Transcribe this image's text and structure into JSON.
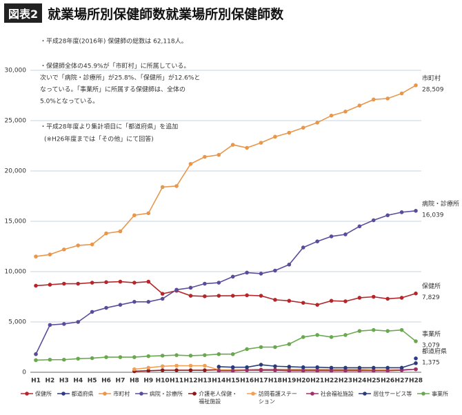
{
  "chart_data": {
    "type": "line",
    "figure_label": "図表2",
    "title": "就業場所別保健師数就業場所別保健師数",
    "notes": [
      "・平成28年度(2016年) 保健師の総数は 62,118人。",
      "・保健師全体の45.9%が「市町村」に所属している。",
      "次いで「病院・診療所」が25.8%、「保健所」が12.6%と",
      "なっている。「事業所」に所属する保健師は、全体の",
      "5.0%となっている。",
      "・平成28年度より集計項目に「都道府県」を追加",
      "(※H26年度までは「その他」にて回答)"
    ],
    "categories": [
      "H1",
      "H2",
      "H3",
      "H4",
      "H5",
      "H6",
      "H7",
      "H8",
      "H9",
      "H10",
      "H11",
      "H12",
      "H13",
      "H14",
      "H15",
      "H16",
      "H17",
      "H18",
      "H19",
      "H20",
      "H21",
      "H22",
      "H23",
      "H24",
      "H25",
      "H26",
      "H27",
      "H28"
    ],
    "ylim": [
      0,
      30000
    ],
    "yticks": [
      0,
      {
        "value": 5000,
        "label": "5,000"
      },
      {
        "value": 10000,
        "label": "10,000"
      },
      {
        "value": 15000,
        "label": "15,000"
      },
      {
        "value": 20000,
        "label": "20,000"
      },
      {
        "value": 25000,
        "label": "25,000"
      },
      {
        "value": 30000,
        "label": "30,000"
      }
    ],
    "grid": true,
    "series": [
      {
        "name": "保健所",
        "color": "#b5262b",
        "values": [
          8600,
          8700,
          8800,
          8800,
          8900,
          8950,
          9000,
          8900,
          9000,
          7800,
          8100,
          7600,
          7550,
          7600,
          7600,
          7650,
          7600,
          7200,
          7100,
          6900,
          6700,
          7100,
          7050,
          7400,
          7500,
          7300,
          7400,
          7829
        ],
        "value_labels": [
          null,
          null,
          null,
          null,
          null,
          null,
          null,
          null,
          null,
          null,
          null,
          null,
          null,
          null,
          null,
          null,
          null,
          null,
          null,
          null,
          null,
          null,
          null,
          null,
          null,
          null,
          null,
          "7,829"
        ]
      },
      {
        "name": "都道府県",
        "color": "#2b3a8a",
        "values": [
          null,
          null,
          null,
          null,
          null,
          null,
          null,
          null,
          null,
          null,
          null,
          null,
          null,
          null,
          null,
          null,
          null,
          null,
          null,
          null,
          null,
          null,
          null,
          null,
          null,
          null,
          null,
          1375
        ],
        "value_labels": [
          null,
          null,
          null,
          null,
          null,
          null,
          null,
          null,
          null,
          null,
          null,
          null,
          null,
          null,
          null,
          null,
          null,
          null,
          null,
          null,
          null,
          null,
          null,
          null,
          null,
          null,
          null,
          "1,375"
        ]
      },
      {
        "name": "市町村",
        "color": "#e8964a",
        "values": [
          11500,
          11700,
          12200,
          12600,
          12700,
          13800,
          14000,
          15600,
          15800,
          18400,
          18500,
          20700,
          21400,
          21600,
          22600,
          22300,
          22800,
          23400,
          23800,
          24300,
          24800,
          25500,
          25900,
          26500,
          27100,
          27200,
          27700,
          28509
        ],
        "value_labels": [
          null,
          null,
          null,
          null,
          null,
          null,
          null,
          null,
          null,
          null,
          null,
          null,
          null,
          null,
          null,
          null,
          null,
          null,
          null,
          null,
          null,
          null,
          null,
          null,
          null,
          null,
          null,
          "28,509"
        ]
      },
      {
        "name": "病院・診療所",
        "color": "#5a4b9b",
        "values": [
          1800,
          4700,
          4800,
          5000,
          6000,
          6400,
          6700,
          7000,
          7000,
          7300,
          8200,
          8400,
          8800,
          8900,
          9500,
          9900,
          9800,
          10100,
          10700,
          12400,
          13000,
          13500,
          13700,
          14500,
          15100,
          15600,
          15900,
          16039
        ],
        "value_labels": [
          null,
          null,
          null,
          null,
          null,
          null,
          null,
          null,
          null,
          null,
          null,
          null,
          null,
          null,
          null,
          null,
          null,
          null,
          null,
          null,
          null,
          null,
          null,
          null,
          null,
          null,
          null,
          "16,039"
        ]
      },
      {
        "name": "介護老人保健・福祉施設",
        "color": "#8b1a1a",
        "values": [
          null,
          null,
          null,
          null,
          null,
          null,
          null,
          100,
          150,
          200,
          200,
          200,
          200,
          250,
          250,
          250,
          250,
          250,
          250,
          250,
          250,
          250,
          250,
          250,
          250,
          250,
          250,
          300
        ]
      },
      {
        "name": "訪問看護ステーション",
        "color": "#f0a050",
        "values": [
          null,
          null,
          null,
          null,
          null,
          null,
          null,
          300,
          450,
          600,
          650,
          650,
          650,
          250,
          250,
          250,
          200,
          200,
          200,
          200,
          200,
          200,
          200,
          200,
          250,
          250,
          250,
          300
        ]
      },
      {
        "name": "社会福祉施設",
        "color": "#a0306a",
        "values": [
          null,
          null,
          null,
          null,
          null,
          null,
          null,
          null,
          null,
          null,
          null,
          null,
          null,
          150,
          150,
          200,
          200,
          200,
          150,
          150,
          150,
          150,
          150,
          150,
          150,
          150,
          200,
          300
        ]
      },
      {
        "name": "居住サービス等",
        "color": "#2a3b7a",
        "values": [
          null,
          null,
          null,
          null,
          null,
          null,
          null,
          null,
          null,
          null,
          null,
          null,
          null,
          550,
          500,
          500,
          750,
          600,
          550,
          500,
          500,
          450,
          450,
          450,
          450,
          450,
          450,
          900
        ]
      },
      {
        "name": "事業所",
        "color": "#6aa84f",
        "values": [
          1200,
          1250,
          1250,
          1350,
          1400,
          1500,
          1500,
          1500,
          1600,
          1650,
          1700,
          1650,
          1700,
          1800,
          1800,
          2300,
          2500,
          2500,
          2800,
          3500,
          3700,
          3500,
          3700,
          4100,
          4200,
          4100,
          4200,
          3079
        ],
        "value_labels": [
          null,
          null,
          null,
          null,
          null,
          null,
          null,
          null,
          null,
          null,
          null,
          null,
          null,
          null,
          null,
          null,
          null,
          null,
          null,
          null,
          null,
          null,
          null,
          null,
          null,
          null,
          null,
          "3,079"
        ]
      }
    ]
  }
}
